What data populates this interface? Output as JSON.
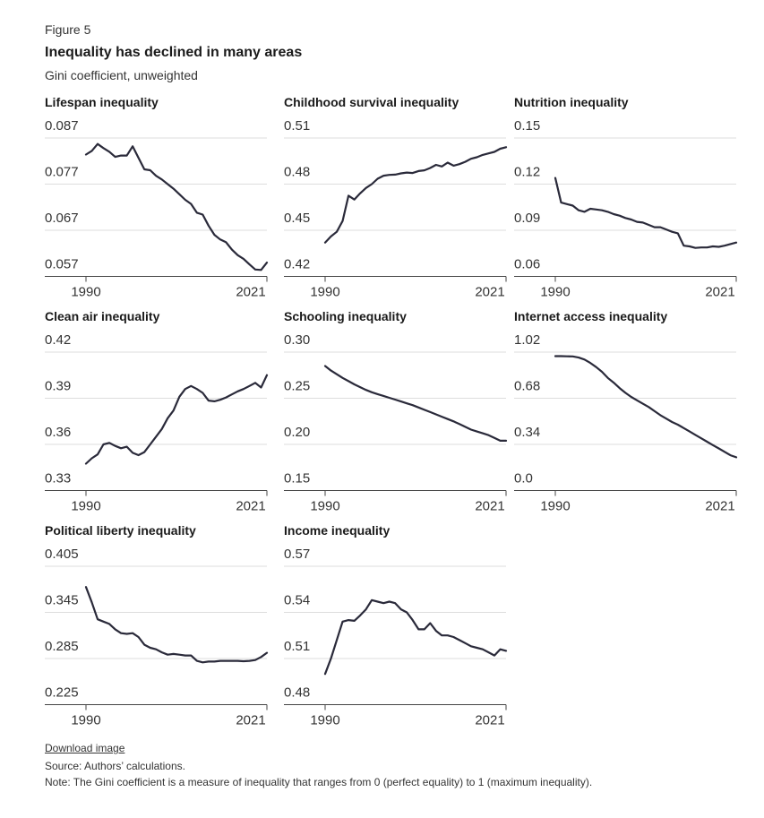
{
  "header": {
    "figure_label": "Figure 5",
    "title": "Inequality has declined in many areas",
    "subtitle": "Gini coefficient, unweighted"
  },
  "footer": {
    "download_label": "Download image",
    "source": "Source: Authors’ calculations.",
    "note": "Note: The Gini coefficient is a measure of inequality that ranges from 0 (perfect equality) to 1 (maximum inequality)."
  },
  "colors": {
    "line": "#2a2a3a",
    "grid": "#dddddd",
    "axis": "#444444"
  },
  "chart_data": [
    {
      "type": "line",
      "title": "Lifespan inequality",
      "x_tick_labels": [
        "1990",
        "2021"
      ],
      "y_tick_labels": [
        "0.087",
        "0.077",
        "0.067",
        "0.057"
      ],
      "ylim": [
        0.057,
        0.087
      ],
      "xlim": [
        1990,
        2021
      ],
      "x": [
        1990,
        1991,
        1992,
        1993,
        1994,
        1995,
        1996,
        1997,
        1998,
        1999,
        2000,
        2001,
        2002,
        2003,
        2004,
        2005,
        2006,
        2007,
        2008,
        2009,
        2010,
        2011,
        2012,
        2013,
        2014,
        2015,
        2016,
        2017,
        2018,
        2019,
        2020,
        2021
      ],
      "y": [
        0.0834,
        0.0842,
        0.0857,
        0.0848,
        0.084,
        0.0829,
        0.0832,
        0.0832,
        0.0852,
        0.0827,
        0.0802,
        0.08,
        0.0788,
        0.078,
        0.077,
        0.076,
        0.0748,
        0.0736,
        0.0727,
        0.0708,
        0.0704,
        0.068,
        0.066,
        0.065,
        0.0644,
        0.0628,
        0.0616,
        0.0608,
        0.0596,
        0.0585,
        0.0584,
        0.06
      ]
    },
    {
      "type": "line",
      "title": "Childhood survival inequality",
      "x_tick_labels": [
        "1990",
        "2021"
      ],
      "y_tick_labels": [
        "0.51",
        "0.48",
        "0.45",
        "0.42"
      ],
      "ylim": [
        0.42,
        0.51
      ],
      "xlim": [
        1990,
        2021
      ],
      "x": [
        1990,
        1991,
        1992,
        1993,
        1994,
        1995,
        1996,
        1997,
        1998,
        1999,
        2000,
        2001,
        2002,
        2003,
        2004,
        2005,
        2006,
        2007,
        2008,
        2009,
        2010,
        2011,
        2012,
        2013,
        2014,
        2015,
        2016,
        2017,
        2018,
        2019,
        2020,
        2021
      ],
      "y": [
        0.442,
        0.446,
        0.449,
        0.456,
        0.4725,
        0.47,
        0.474,
        0.4775,
        0.48,
        0.4835,
        0.4855,
        0.486,
        0.4862,
        0.487,
        0.4875,
        0.4872,
        0.4885,
        0.489,
        0.4905,
        0.4925,
        0.4915,
        0.494,
        0.492,
        0.493,
        0.4945,
        0.4965,
        0.4975,
        0.499,
        0.5,
        0.501,
        0.503,
        0.504
      ]
    },
    {
      "type": "line",
      "title": "Nutrition inequality",
      "x_tick_labels": [
        "1990",
        "2021"
      ],
      "y_tick_labels": [
        "0.15",
        "0.12",
        "0.09",
        "0.06"
      ],
      "ylim": [
        0.06,
        0.15
      ],
      "xlim": [
        1990,
        2021
      ],
      "x": [
        1990,
        1991,
        1992,
        1993,
        1994,
        1995,
        1996,
        1997,
        1998,
        1999,
        2000,
        2001,
        2002,
        2003,
        2004,
        2005,
        2006,
        2007,
        2008,
        2009,
        2010,
        2011,
        2012,
        2013,
        2014,
        2015,
        2016,
        2017,
        2018,
        2019,
        2020,
        2021
      ],
      "y": [
        0.124,
        0.108,
        0.107,
        0.106,
        0.103,
        0.102,
        0.104,
        0.1035,
        0.103,
        0.102,
        0.1005,
        0.0995,
        0.098,
        0.097,
        0.0955,
        0.095,
        0.0935,
        0.092,
        0.092,
        0.0905,
        0.089,
        0.088,
        0.08,
        0.0795,
        0.0785,
        0.0788,
        0.0788,
        0.0795,
        0.0792,
        0.08,
        0.081,
        0.082
      ]
    },
    {
      "type": "line",
      "title": "Clean air inequality",
      "x_tick_labels": [
        "1990",
        "2021"
      ],
      "y_tick_labels": [
        "0.42",
        "0.39",
        "0.36",
        "0.33"
      ],
      "ylim": [
        0.33,
        0.42
      ],
      "xlim": [
        1990,
        2021
      ],
      "x": [
        1990,
        1991,
        1992,
        1993,
        1994,
        1995,
        1996,
        1997,
        1998,
        1999,
        2000,
        2001,
        2002,
        2003,
        2004,
        2005,
        2006,
        2007,
        2008,
        2009,
        2010,
        2011,
        2012,
        2013,
        2014,
        2015,
        2016,
        2017,
        2018,
        2019,
        2020,
        2021
      ],
      "y": [
        0.3475,
        0.351,
        0.3535,
        0.36,
        0.361,
        0.359,
        0.3575,
        0.3585,
        0.3545,
        0.353,
        0.355,
        0.36,
        0.365,
        0.37,
        0.377,
        0.382,
        0.391,
        0.396,
        0.398,
        0.396,
        0.3935,
        0.3885,
        0.388,
        0.389,
        0.3905,
        0.3925,
        0.3945,
        0.396,
        0.398,
        0.4,
        0.397,
        0.405
      ]
    },
    {
      "type": "line",
      "title": "Schooling inequality",
      "x_tick_labels": [
        "1990",
        "2021"
      ],
      "y_tick_labels": [
        "0.30",
        "0.25",
        "0.20",
        "0.15"
      ],
      "ylim": [
        0.15,
        0.3
      ],
      "xlim": [
        1990,
        2021
      ],
      "x": [
        1990,
        1991,
        1992,
        1993,
        1994,
        1995,
        1996,
        1997,
        1998,
        1999,
        2000,
        2001,
        2002,
        2003,
        2004,
        2005,
        2006,
        2007,
        2008,
        2009,
        2010,
        2011,
        2012,
        2013,
        2014,
        2015,
        2016,
        2017,
        2018,
        2019,
        2020,
        2021
      ],
      "y": [
        0.285,
        0.28,
        0.276,
        0.272,
        0.2685,
        0.265,
        0.262,
        0.259,
        0.2565,
        0.2545,
        0.2525,
        0.2505,
        0.2485,
        0.2465,
        0.2445,
        0.2425,
        0.24,
        0.2375,
        0.235,
        0.2325,
        0.23,
        0.2275,
        0.225,
        0.222,
        0.219,
        0.216,
        0.214,
        0.212,
        0.21,
        0.207,
        0.204,
        0.204
      ]
    },
    {
      "type": "line",
      "title": "Internet access inequality",
      "x_tick_labels": [
        "1990",
        "2021"
      ],
      "y_tick_labels": [
        "1.02",
        "0.68",
        "0.34",
        "0.0"
      ],
      "ylim": [
        0.0,
        1.02
      ],
      "xlim": [
        1990,
        2021
      ],
      "x": [
        1990,
        1991,
        1992,
        1993,
        1994,
        1995,
        1996,
        1997,
        1998,
        1999,
        2000,
        2001,
        2002,
        2003,
        2004,
        2005,
        2006,
        2007,
        2008,
        2009,
        2010,
        2011,
        2012,
        2013,
        2014,
        2015,
        2016,
        2017,
        2018,
        2019,
        2020,
        2021
      ],
      "y": [
        0.99,
        0.99,
        0.989,
        0.988,
        0.98,
        0.965,
        0.94,
        0.91,
        0.875,
        0.83,
        0.795,
        0.755,
        0.72,
        0.69,
        0.665,
        0.64,
        0.615,
        0.585,
        0.555,
        0.53,
        0.505,
        0.485,
        0.46,
        0.435,
        0.41,
        0.385,
        0.36,
        0.335,
        0.31,
        0.285,
        0.26,
        0.245
      ]
    },
    {
      "type": "line",
      "title": "Political liberty inequality",
      "x_tick_labels": [
        "1990",
        "2021"
      ],
      "y_tick_labels": [
        "0.405",
        "0.345",
        "0.285",
        "0.225"
      ],
      "ylim": [
        0.225,
        0.405
      ],
      "xlim": [
        1990,
        2021
      ],
      "x": [
        1990,
        1991,
        1992,
        1993,
        1994,
        1995,
        1996,
        1997,
        1998,
        1999,
        2000,
        2001,
        2002,
        2003,
        2004,
        2005,
        2006,
        2007,
        2008,
        2009,
        2010,
        2011,
        2012,
        2013,
        2014,
        2015,
        2016,
        2017,
        2018,
        2019,
        2020,
        2021
      ],
      "y": [
        0.378,
        0.358,
        0.336,
        0.333,
        0.33,
        0.323,
        0.318,
        0.317,
        0.318,
        0.313,
        0.303,
        0.299,
        0.297,
        0.293,
        0.29,
        0.291,
        0.29,
        0.289,
        0.289,
        0.282,
        0.28,
        0.281,
        0.281,
        0.282,
        0.282,
        0.282,
        0.282,
        0.2815,
        0.282,
        0.283,
        0.287,
        0.2925
      ]
    },
    {
      "type": "line",
      "title": "Income inequality",
      "x_tick_labels": [
        "1990",
        "2021"
      ],
      "y_tick_labels": [
        "0.57",
        "0.54",
        "0.51",
        "0.48"
      ],
      "ylim": [
        0.48,
        0.57
      ],
      "xlim": [
        1990,
        2021
      ],
      "x": [
        1990,
        1991,
        1992,
        1993,
        1994,
        1995,
        1996,
        1997,
        1998,
        1999,
        2000,
        2001,
        2002,
        2003,
        2004,
        2005,
        2006,
        2007,
        2008,
        2009,
        2010,
        2011,
        2012,
        2013,
        2014,
        2015,
        2016,
        2017,
        2018,
        2019,
        2020,
        2021
      ],
      "y": [
        0.5,
        0.51,
        0.522,
        0.534,
        0.535,
        0.5345,
        0.538,
        0.542,
        0.548,
        0.547,
        0.546,
        0.547,
        0.546,
        0.542,
        0.54,
        0.535,
        0.529,
        0.529,
        0.533,
        0.528,
        0.525,
        0.525,
        0.524,
        0.522,
        0.52,
        0.518,
        0.517,
        0.516,
        0.514,
        0.512,
        0.516,
        0.515
      ]
    }
  ]
}
